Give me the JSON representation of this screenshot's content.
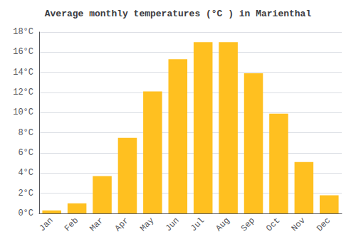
{
  "chart_data": {
    "type": "bar",
    "title": "Average monthly temperatures (°C ) in Marienthal",
    "categories": [
      "Jan",
      "Feb",
      "Mar",
      "Apr",
      "May",
      "Jun",
      "Jul",
      "Aug",
      "Sep",
      "Oct",
      "Nov",
      "Dec"
    ],
    "values": [
      0.3,
      1.0,
      3.7,
      7.5,
      12.1,
      15.3,
      17.0,
      17.0,
      13.9,
      9.9,
      5.1,
      1.8
    ],
    "color": "#FFC020",
    "ylim": [
      0,
      18
    ],
    "yticks": [
      {
        "value": 0,
        "label": "0°C"
      },
      {
        "value": 2,
        "label": "2°C"
      },
      {
        "value": 4,
        "label": "4°C"
      },
      {
        "value": 6,
        "label": "6°C"
      },
      {
        "value": 8,
        "label": "8°C"
      },
      {
        "value": 10,
        "label": "10°C"
      },
      {
        "value": 12,
        "label": "12°C"
      },
      {
        "value": 14,
        "label": "14°C"
      },
      {
        "value": 16,
        "label": "16°C"
      },
      {
        "value": 18,
        "label": "18°C"
      }
    ],
    "grid": true
  }
}
